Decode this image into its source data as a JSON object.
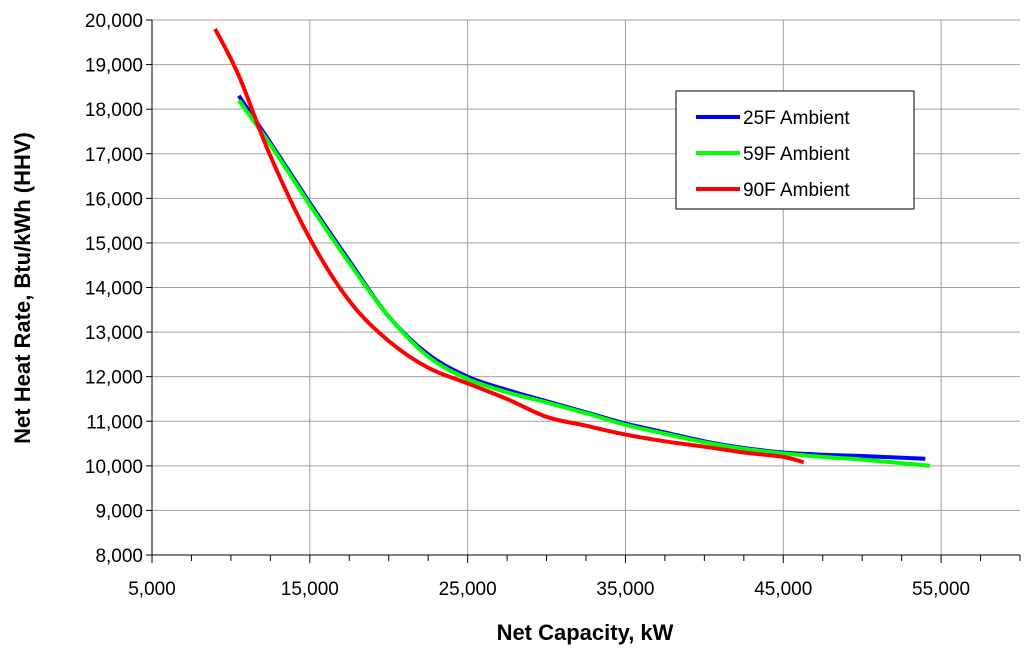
{
  "chart_data": {
    "type": "line",
    "title": "",
    "xlabel": "Net Capacity, kW",
    "ylabel": "Net Heat Rate, Btu/kWh (HHV)",
    "xlim": [
      5000,
      60000
    ],
    "ylim": [
      8000,
      20000
    ],
    "x_ticks": [
      5000,
      15000,
      25000,
      35000,
      45000,
      55000
    ],
    "x_tick_labels": [
      "5,000",
      "15,000",
      "25,000",
      "35,000",
      "45,000",
      "55,000"
    ],
    "y_ticks": [
      8000,
      9000,
      10000,
      11000,
      12000,
      13000,
      14000,
      15000,
      16000,
      17000,
      18000,
      19000,
      20000
    ],
    "y_tick_labels": [
      "8,000",
      "9,000",
      "10,000",
      "11,000",
      "12,000",
      "13,000",
      "14,000",
      "15,000",
      "16,000",
      "17,000",
      "18,000",
      "19,000",
      "20,000"
    ],
    "x_minor_step": 2500,
    "grid": true,
    "legend_position": "top-right",
    "series": [
      {
        "name": "25F Ambient",
        "color": "#0000ff",
        "points": [
          [
            10500,
            18300
          ],
          [
            12500,
            17250
          ],
          [
            15000,
            15900
          ],
          [
            17500,
            14600
          ],
          [
            20000,
            13350
          ],
          [
            22500,
            12500
          ],
          [
            25000,
            12000
          ],
          [
            27500,
            11700
          ],
          [
            30000,
            11450
          ],
          [
            32500,
            11200
          ],
          [
            35000,
            10950
          ],
          [
            37500,
            10750
          ],
          [
            40000,
            10550
          ],
          [
            42500,
            10400
          ],
          [
            45000,
            10300
          ],
          [
            47500,
            10250
          ],
          [
            50000,
            10220
          ],
          [
            54000,
            10160
          ]
        ]
      },
      {
        "name": "59F Ambient",
        "color": "#00ff00",
        "points": [
          [
            10500,
            18200
          ],
          [
            12500,
            17200
          ],
          [
            15000,
            15850
          ],
          [
            17500,
            14550
          ],
          [
            20000,
            13350
          ],
          [
            22500,
            12450
          ],
          [
            25000,
            11950
          ],
          [
            27500,
            11650
          ],
          [
            30000,
            11420
          ],
          [
            32500,
            11180
          ],
          [
            35000,
            10920
          ],
          [
            37500,
            10720
          ],
          [
            40000,
            10530
          ],
          [
            42500,
            10380
          ],
          [
            45000,
            10280
          ],
          [
            47500,
            10200
          ],
          [
            50000,
            10140
          ],
          [
            54300,
            10000
          ]
        ]
      },
      {
        "name": "90F Ambient",
        "color": "#ff0000",
        "points": [
          [
            9000,
            19800
          ],
          [
            10500,
            18750
          ],
          [
            12500,
            16950
          ],
          [
            15000,
            15100
          ],
          [
            17500,
            13700
          ],
          [
            20000,
            12800
          ],
          [
            22500,
            12200
          ],
          [
            25000,
            11850
          ],
          [
            27500,
            11500
          ],
          [
            30000,
            11100
          ],
          [
            32500,
            10900
          ],
          [
            35000,
            10700
          ],
          [
            37500,
            10550
          ],
          [
            40000,
            10430
          ],
          [
            42500,
            10300
          ],
          [
            45000,
            10200
          ],
          [
            46300,
            10080
          ]
        ]
      }
    ]
  }
}
